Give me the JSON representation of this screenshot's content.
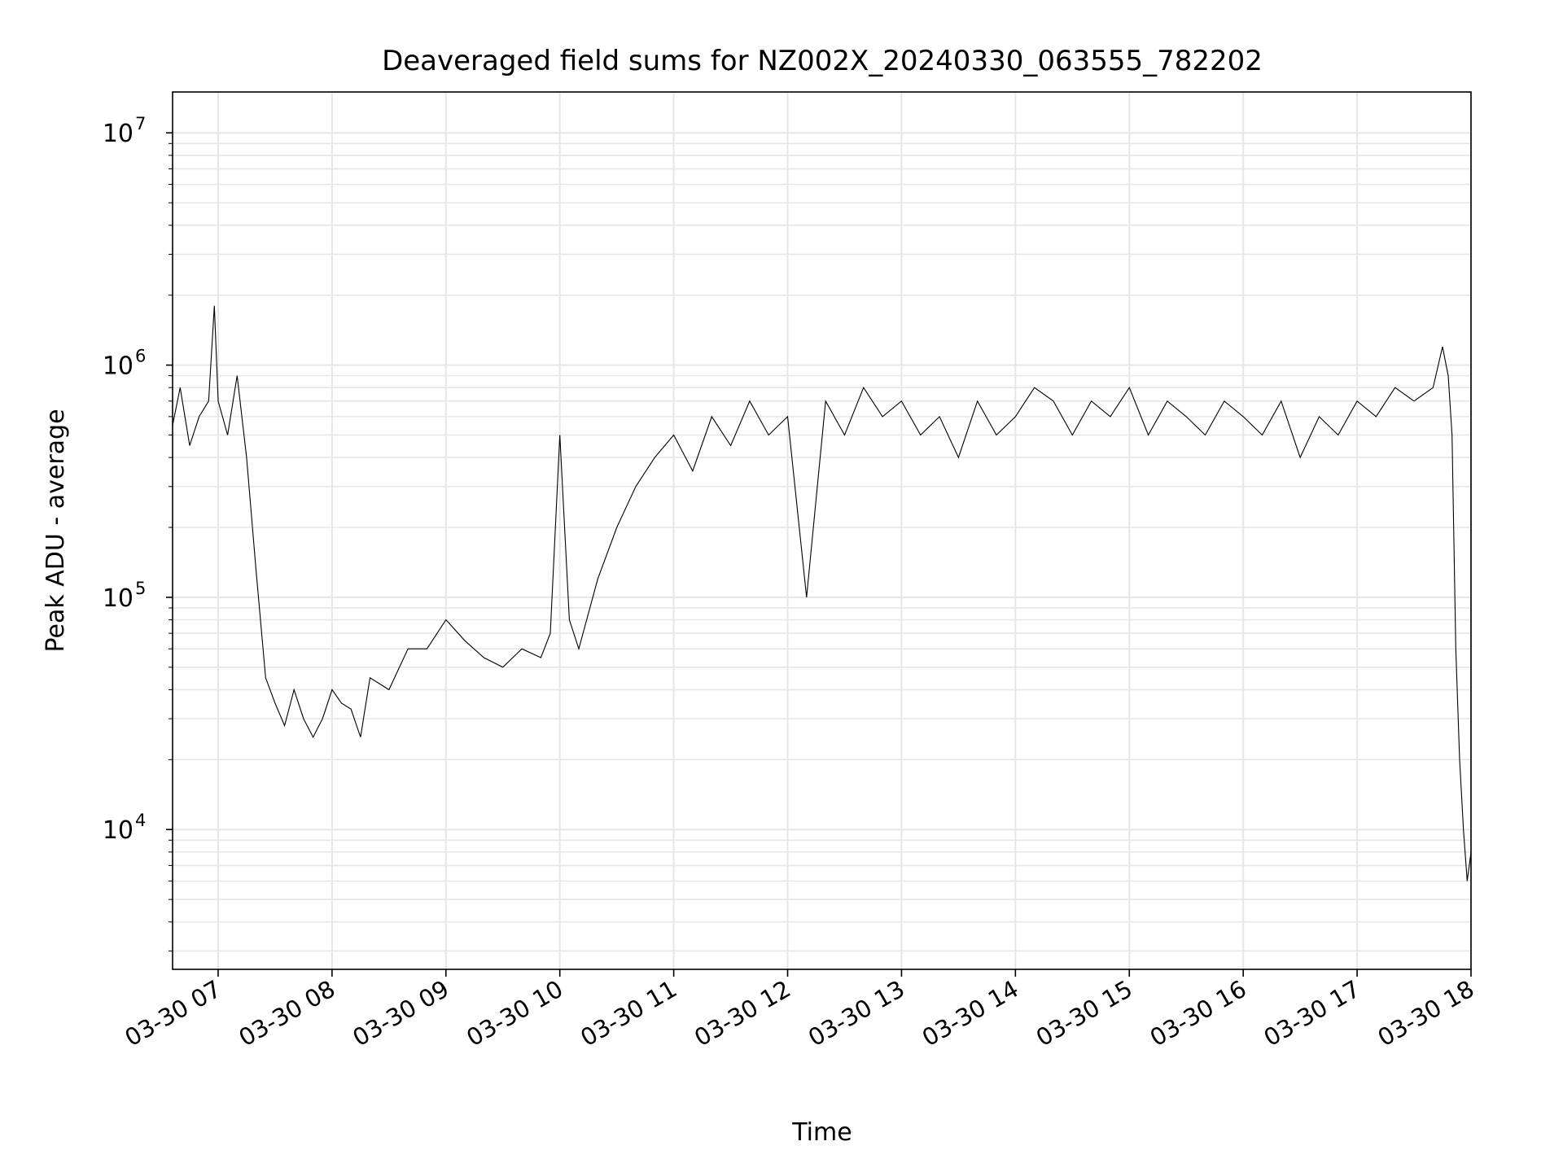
{
  "chart_data": {
    "type": "line",
    "title": "Deaveraged field sums for NZ002X_20240330_063555_782202",
    "xlabel": "Time",
    "ylabel": "Peak ADU - average",
    "yscale": "log",
    "ylim": [
      2500,
      15000000
    ],
    "xlim": [
      "2024-03-30 06:36",
      "2024-03-30 18:00"
    ],
    "grid": true,
    "x_ticks": [
      "2024-03-30 07:00",
      "2024-03-30 08:00",
      "2024-03-30 09:00",
      "2024-03-30 10:00",
      "2024-03-30 11:00",
      "2024-03-30 12:00",
      "2024-03-30 13:00",
      "2024-03-30 14:00",
      "2024-03-30 15:00",
      "2024-03-30 16:00",
      "2024-03-30 17:00",
      "2024-03-30 18:00"
    ],
    "x_tick_labels": [
      "03-30 07",
      "03-30 08",
      "03-30 09",
      "03-30 10",
      "03-30 11",
      "03-30 12",
      "03-30 13",
      "03-30 14",
      "03-30 15",
      "03-30 16",
      "03-30 17",
      "03-30 18"
    ],
    "y_ticks": [
      10000,
      100000,
      1000000,
      10000000
    ],
    "y_tick_labels": [
      {
        "base": "10",
        "exp": "4"
      },
      {
        "base": "10",
        "exp": "5"
      },
      {
        "base": "10",
        "exp": "6"
      },
      {
        "base": "10",
        "exp": "7"
      }
    ],
    "series_color": "#000000",
    "series": [
      {
        "x": [
          "2024-03-30 06:36",
          "2024-03-30 06:40",
          "2024-03-30 06:45",
          "2024-03-30 06:50",
          "2024-03-30 06:55",
          "2024-03-30 06:58",
          "2024-03-30 07:00",
          "2024-03-30 07:05",
          "2024-03-30 07:10",
          "2024-03-30 07:15",
          "2024-03-30 07:20",
          "2024-03-30 07:25",
          "2024-03-30 07:30",
          "2024-03-30 07:35",
          "2024-03-30 07:40",
          "2024-03-30 07:45",
          "2024-03-30 07:50",
          "2024-03-30 07:55",
          "2024-03-30 08:00",
          "2024-03-30 08:05",
          "2024-03-30 08:10",
          "2024-03-30 08:15",
          "2024-03-30 08:20",
          "2024-03-30 08:30",
          "2024-03-30 08:40",
          "2024-03-30 08:50",
          "2024-03-30 09:00",
          "2024-03-30 09:10",
          "2024-03-30 09:20",
          "2024-03-30 09:30",
          "2024-03-30 09:40",
          "2024-03-30 09:50",
          "2024-03-30 09:55",
          "2024-03-30 10:00",
          "2024-03-30 10:05",
          "2024-03-30 10:10",
          "2024-03-30 10:20",
          "2024-03-30 10:30",
          "2024-03-30 10:40",
          "2024-03-30 10:50",
          "2024-03-30 11:00",
          "2024-03-30 11:10",
          "2024-03-30 11:20",
          "2024-03-30 11:30",
          "2024-03-30 11:40",
          "2024-03-30 11:50",
          "2024-03-30 12:00",
          "2024-03-30 12:10",
          "2024-03-30 12:20",
          "2024-03-30 12:30",
          "2024-03-30 12:40",
          "2024-03-30 12:50",
          "2024-03-30 13:00",
          "2024-03-30 13:10",
          "2024-03-30 13:20",
          "2024-03-30 13:30",
          "2024-03-30 13:40",
          "2024-03-30 13:50",
          "2024-03-30 14:00",
          "2024-03-30 14:10",
          "2024-03-30 14:20",
          "2024-03-30 14:30",
          "2024-03-30 14:40",
          "2024-03-30 14:50",
          "2024-03-30 15:00",
          "2024-03-30 15:10",
          "2024-03-30 15:20",
          "2024-03-30 15:30",
          "2024-03-30 15:40",
          "2024-03-30 15:50",
          "2024-03-30 16:00",
          "2024-03-30 16:10",
          "2024-03-30 16:20",
          "2024-03-30 16:30",
          "2024-03-30 16:40",
          "2024-03-30 16:50",
          "2024-03-30 17:00",
          "2024-03-30 17:10",
          "2024-03-30 17:20",
          "2024-03-30 17:30",
          "2024-03-30 17:40",
          "2024-03-30 17:45",
          "2024-03-30 17:48",
          "2024-03-30 17:50",
          "2024-03-30 17:52",
          "2024-03-30 17:54",
          "2024-03-30 17:56",
          "2024-03-30 17:58",
          "2024-03-30 18:00"
        ],
        "y": [
          550000,
          800000,
          450000,
          600000,
          700000,
          1800000,
          700000,
          500000,
          900000,
          400000,
          130000,
          45000,
          35000,
          28000,
          40000,
          30000,
          25000,
          30000,
          40000,
          35000,
          33000,
          25000,
          45000,
          40000,
          60000,
          60000,
          80000,
          65000,
          55000,
          50000,
          60000,
          55000,
          70000,
          500000,
          80000,
          60000,
          120000,
          200000,
          300000,
          400000,
          500000,
          350000,
          600000,
          450000,
          700000,
          500000,
          600000,
          100000,
          700000,
          500000,
          800000,
          600000,
          700000,
          500000,
          600000,
          400000,
          700000,
          500000,
          600000,
          800000,
          700000,
          500000,
          700000,
          600000,
          800000,
          500000,
          700000,
          600000,
          500000,
          700000,
          600000,
          500000,
          700000,
          400000,
          600000,
          500000,
          700000,
          600000,
          800000,
          700000,
          800000,
          1200000,
          900000,
          500000,
          60000,
          20000,
          10000,
          6000,
          8000
        ]
      }
    ]
  }
}
